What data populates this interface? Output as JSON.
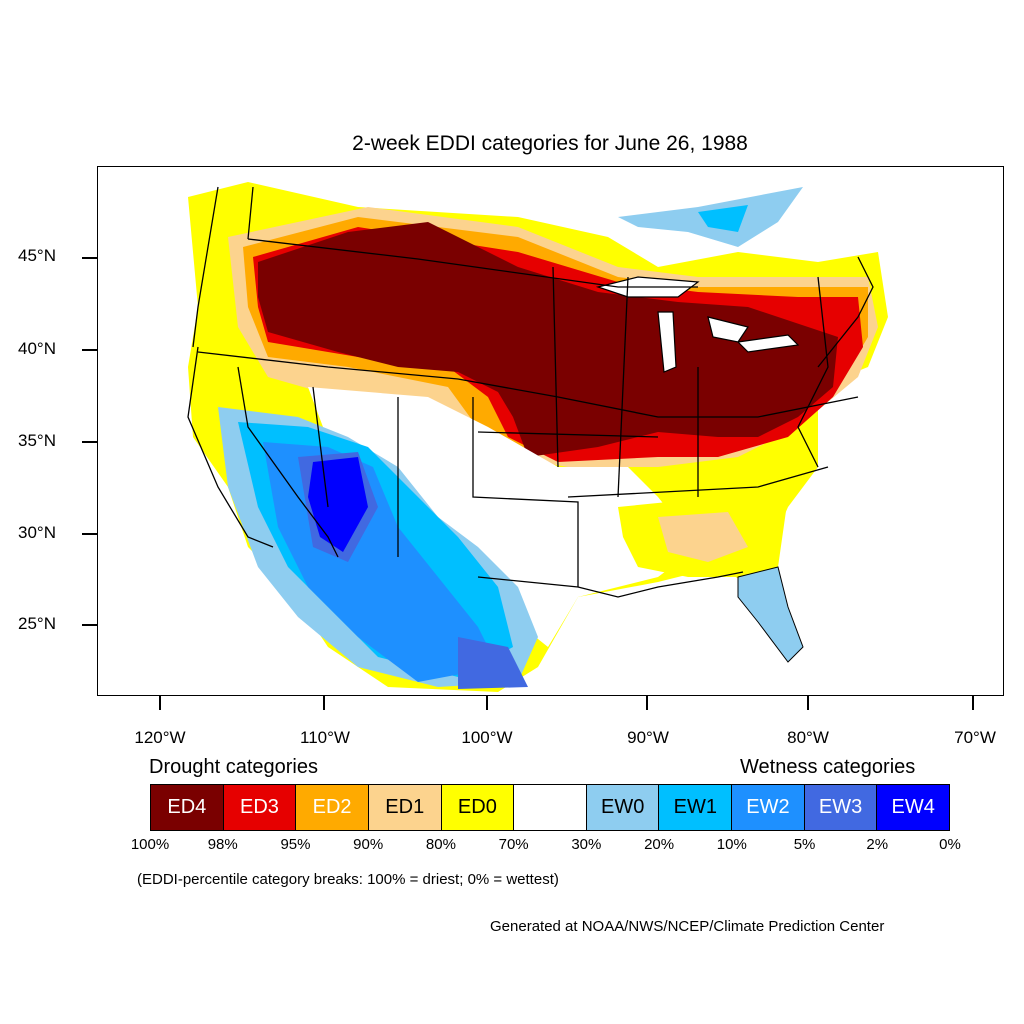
{
  "title": "2-week EDDI categories for June 26, 1988",
  "lat_labels": [
    "45°N",
    "40°N",
    "35°N",
    "30°N",
    "25°N"
  ],
  "lon_labels": [
    "120°W",
    "110°W",
    "100°W",
    "90°W",
    "80°W",
    "70°W"
  ],
  "legend": {
    "drought_title": "Drought categories",
    "wetness_title": "Wetness categories",
    "categories": [
      {
        "label": "ED4",
        "color": "#7a0000",
        "text_color": "#ffffff"
      },
      {
        "label": "ED3",
        "color": "#e60000",
        "text_color": "#ffffff"
      },
      {
        "label": "ED2",
        "color": "#ffaa00",
        "text_color": "#ffffff"
      },
      {
        "label": "ED1",
        "color": "#fcd38e",
        "text_color": "#000000"
      },
      {
        "label": "ED0",
        "color": "#ffff00",
        "text_color": "#000000"
      },
      {
        "label": "",
        "color": "#ffffff",
        "text_color": "#000000"
      },
      {
        "label": "EW0",
        "color": "#8ecdf0",
        "text_color": "#000000"
      },
      {
        "label": "EW1",
        "color": "#00bfff",
        "text_color": "#000000"
      },
      {
        "label": "EW2",
        "color": "#1e90ff",
        "text_color": "#ffffff"
      },
      {
        "label": "EW3",
        "color": "#4169e1",
        "text_color": "#ffffff"
      },
      {
        "label": "EW4",
        "color": "#0000ff",
        "text_color": "#ffffff"
      }
    ],
    "breaks": [
      "100%",
      "98%",
      "95%",
      "90%",
      "80%",
      "70%",
      "30%",
      "20%",
      "10%",
      "5%",
      "2%",
      "0%"
    ]
  },
  "note": "(EDDI-percentile category breaks: 100% = driest; 0% = wettest)",
  "credit": "Generated at NOAA/NWS/NCEP/Climate Prediction Center"
}
